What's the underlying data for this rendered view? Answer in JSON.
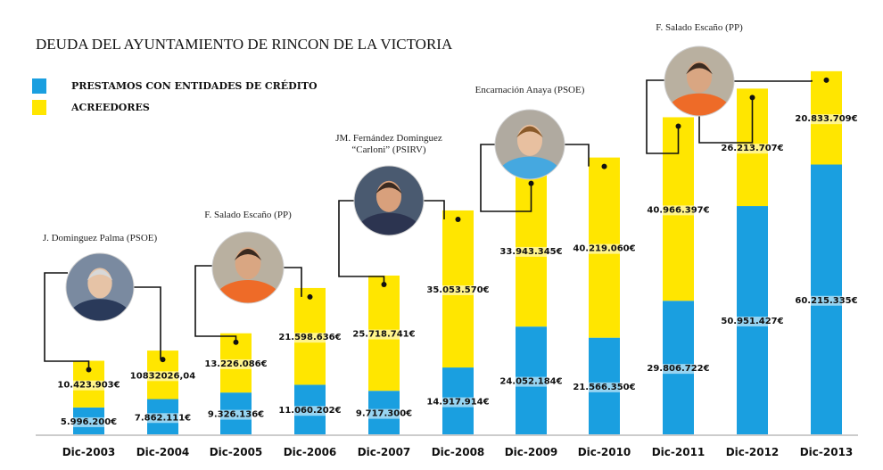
{
  "chart_data": {
    "type": "bar",
    "stacked": true,
    "title": "DEUDA DEL AYUNTAMIENTO DE RINCON DE LA VICTORIA",
    "categories": [
      "Dic-2003",
      "Dic-2004",
      "Dic-2005",
      "Dic-2006",
      "Dic-2007",
      "Dic-2008",
      "Dic-2009",
      "Dic-2010",
      "Dic-2011",
      "Dic-2012",
      "Dic-2013"
    ],
    "series": [
      {
        "name": "PRESTAMOS CON ENTIDADES DE CRÉDITO",
        "color": "#1a9fe0",
        "values": [
          5996200,
          7862111,
          9326136,
          11060202,
          9717300,
          14917914,
          24052184,
          21566350,
          29806722,
          50951427,
          60215335
        ],
        "labels": [
          "5.996.200€",
          "7.862.111€",
          "9.326.136€",
          "11.060.202€",
          "9.717.300€",
          "14.917.914€",
          "24.052.184€",
          "21.566.350€",
          "29.806.722€",
          "50.951.427€",
          "60.215.335€"
        ]
      },
      {
        "name": "ACREEDORES",
        "color": "#ffe600",
        "values": [
          10423903,
          10832026.04,
          13226086,
          21598636,
          25718741,
          35053570,
          33943345,
          40219060,
          40966397,
          26213707,
          20833709
        ],
        "labels": [
          "10.423.903€",
          "10832026,04",
          "13.226.086€",
          "21.598.636€",
          "25.718.741€",
          "35.053.570€",
          "33.943.345€",
          "40.219.060€",
          "40.966.397€",
          "26.213.707€",
          "20.833.709€"
        ]
      }
    ],
    "ylim": [
      0,
      85000000
    ],
    "grid": false,
    "legend": "top-left",
    "annotations": [
      {
        "label": "J. Dominguez Palma (PSOE)",
        "from": "Dic-2003",
        "to": "Dic-2004"
      },
      {
        "label": "F. Salado Escaño (PP)",
        "from": "Dic-2005",
        "to": "Dic-2006"
      },
      {
        "label": "JM. Fernández Dominguez",
        "label2": "“Carloni” (PSIRV)",
        "from": "Dic-2007",
        "to": "Dic-2008"
      },
      {
        "label": "Encarnación Anaya (PSOE)",
        "from": "Dic-2009",
        "to": "Dic-2010"
      },
      {
        "label": "F. Salado Escaño (PP)",
        "from": "Dic-2011",
        "to": "Dic-2013"
      }
    ]
  }
}
